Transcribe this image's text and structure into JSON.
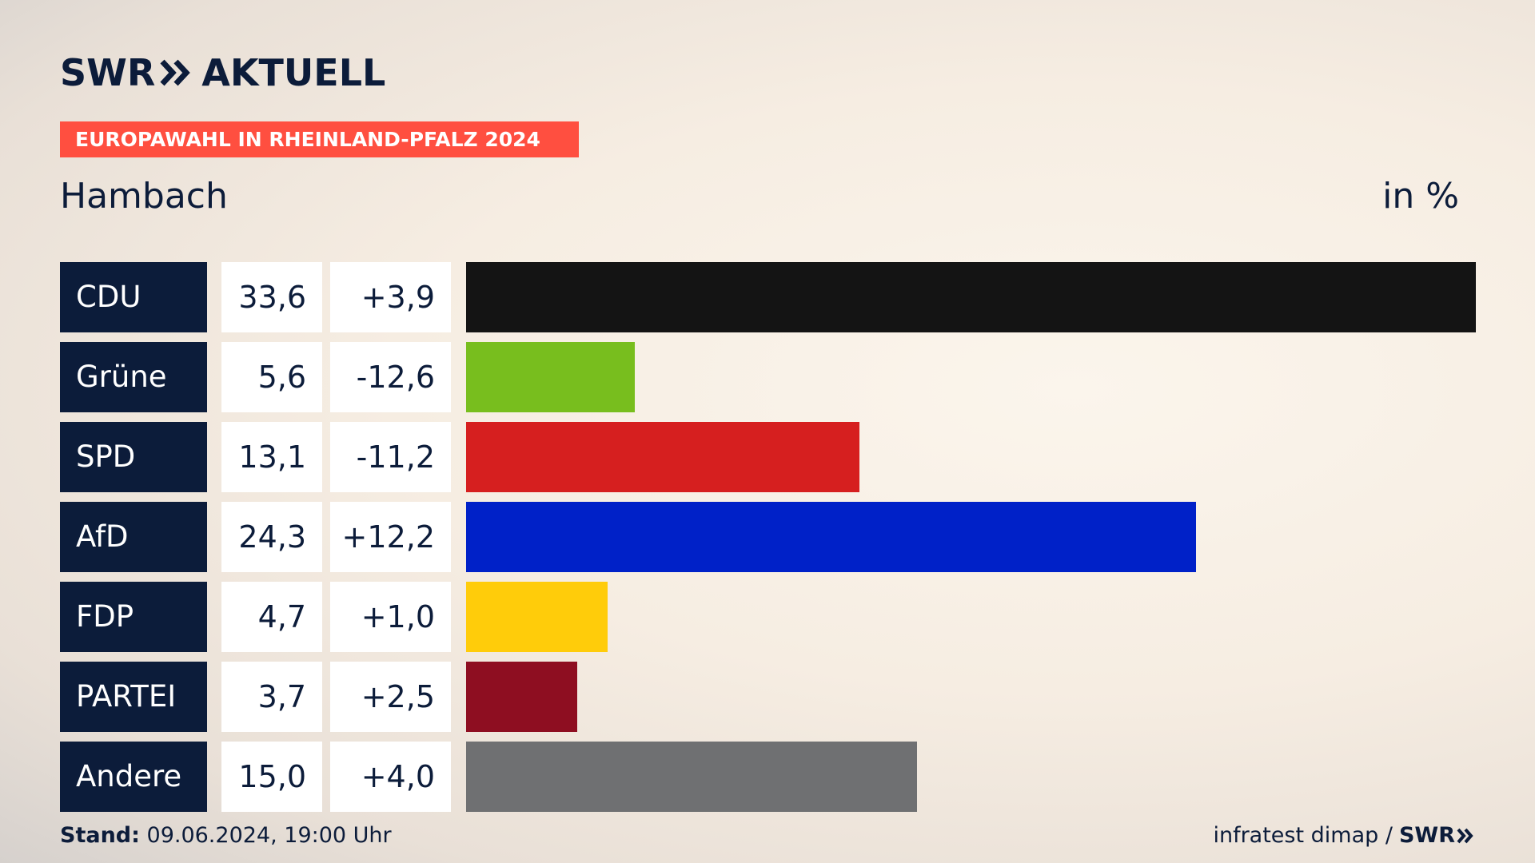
{
  "header": {
    "logo_swr": "SWR",
    "logo_aktuell": "AKTUELL",
    "logo_icon": "double-chevron-icon",
    "banner": "EUROPAWAHL IN RHEINLAND-PFALZ 2024",
    "location": "Hambach",
    "unit": "in %"
  },
  "colors": {
    "navy": "#0c1c3a",
    "banner": "#ff4f40"
  },
  "chart_data": {
    "type": "bar",
    "orientation": "horizontal",
    "title": "Hambach",
    "ylabel": "in %",
    "grid": false,
    "categories": [
      "CDU",
      "Grüne",
      "SPD",
      "AfD",
      "FDP",
      "PARTEI",
      "Andere"
    ],
    "values": [
      33.6,
      5.6,
      13.1,
      24.3,
      4.7,
      3.7,
      15.0
    ],
    "value_labels": [
      "33,6",
      "5,6",
      "13,1",
      "24,3",
      "4,7",
      "3,7",
      "15,0"
    ],
    "diff_labels": [
      "+3,9",
      "-12,6",
      "-11,2",
      "+12,2",
      "+1,0",
      "+2,5",
      "+4,0"
    ],
    "colors": [
      "#141414",
      "#78be1e",
      "#d61f1f",
      "#0021c8",
      "#ffcc0a",
      "#8e0e21",
      "#6f7072"
    ],
    "xlim": [
      0,
      33.6
    ]
  },
  "footer": {
    "stand_label": "Stand:",
    "stand_value": "09.06.2024, 19:00 Uhr",
    "source": "infratest dimap /",
    "source_logo": "SWR"
  }
}
